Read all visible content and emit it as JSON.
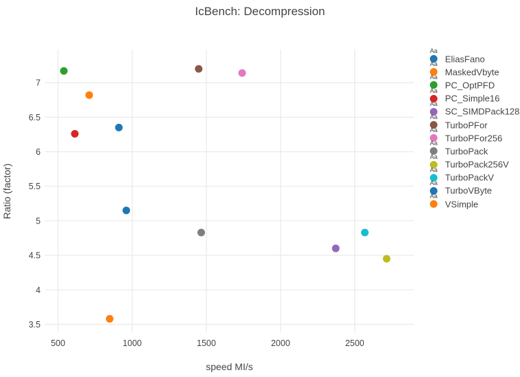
{
  "title": "IcBench: Decompression",
  "colors": {
    "text": "#444444",
    "grid": "#ebebeb",
    "background": "#ffffff"
  },
  "legend": {
    "sample_text": "Aa"
  },
  "chart_data": {
    "type": "scatter",
    "title": "IcBench: Decompression",
    "xlabel": "speed MI/s",
    "ylabel": "Ratio (factor)",
    "xlim": [
      410,
      2900
    ],
    "ylim": [
      3.38,
      7.48
    ],
    "x_ticks": [
      500,
      1000,
      1500,
      2000,
      2500
    ],
    "y_ticks": [
      3.5,
      4,
      4.5,
      5,
      5.5,
      6,
      6.5,
      7
    ],
    "grid": true,
    "legend_position": "right",
    "marker_size": 11,
    "series": [
      {
        "name": "EliasFano",
        "color": "#1f77b4",
        "x": 910,
        "y": 6.35
      },
      {
        "name": "MaskedVbyte",
        "color": "#ff7f0e",
        "x": 848,
        "y": 3.58
      },
      {
        "name": "PC_OptPFD",
        "color": "#2ca02c",
        "x": 539,
        "y": 7.17
      },
      {
        "name": "PC_Simple16",
        "color": "#d62728",
        "x": 613,
        "y": 6.26
      },
      {
        "name": "SC_SIMDPack128",
        "color": "#9467bd",
        "x": 2372,
        "y": 4.6
      },
      {
        "name": "TurboPFor",
        "color": "#8c564b",
        "x": 1448,
        "y": 7.2
      },
      {
        "name": "TurboPFor256",
        "color": "#e377c2",
        "x": 1741,
        "y": 7.14
      },
      {
        "name": "TurboPack",
        "color": "#7f7f7f",
        "x": 1465,
        "y": 4.83
      },
      {
        "name": "TurboPack256V",
        "color": "#bcbd22",
        "x": 2715,
        "y": 4.45
      },
      {
        "name": "TurboPackV",
        "color": "#17becf",
        "x": 2568,
        "y": 4.83
      },
      {
        "name": "TurboVByte",
        "color": "#1f77b4",
        "x": 960,
        "y": 5.15
      },
      {
        "name": "VSimple",
        "color": "#ff7f0e",
        "x": 710,
        "y": 6.82
      }
    ]
  }
}
